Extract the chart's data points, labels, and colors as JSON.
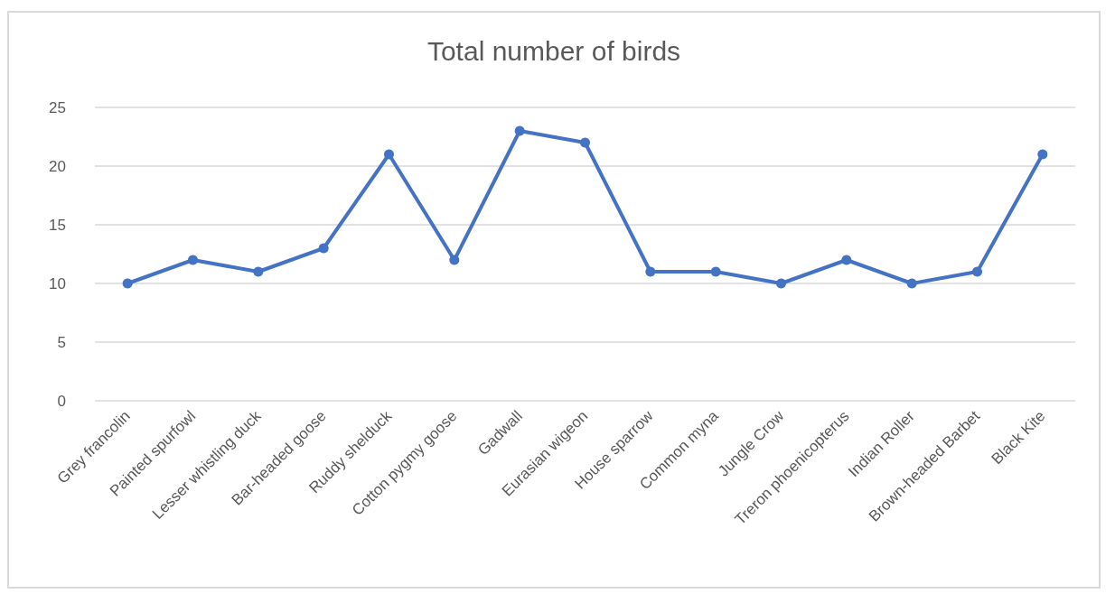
{
  "chart_data": {
    "type": "line",
    "title": "Total number of birds",
    "categories": [
      "Grey francolin",
      "Painted spurfowl",
      "Lesser whistling duck",
      "Bar-headed goose",
      "Ruddy shelduck",
      "Cotton pygmy goose",
      "Gadwall",
      "Eurasian wigeon",
      "House sparrow",
      "Common myna",
      "Jungle Crow",
      "Treron phoenicopterus",
      "Indian Roller",
      "Brown-headed Barbet",
      "Black Kite"
    ],
    "values": [
      10,
      12,
      11,
      13,
      21,
      12,
      23,
      22,
      11,
      11,
      10,
      12,
      10,
      11,
      21
    ],
    "color": "#4472c4",
    "ylim": [
      0,
      25
    ],
    "yticks": [
      0,
      5,
      10,
      15,
      20,
      25
    ],
    "grid": "y",
    "marker": "circle",
    "line_style": "solid"
  }
}
